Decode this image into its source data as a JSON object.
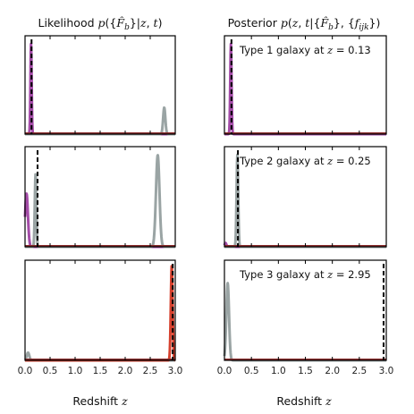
{
  "figure": {
    "left_title": "Likelihood p({F̂b}|z,t)",
    "right_title": "Posterior p(z,t|{F̂b},{fijk})",
    "xlabel": "Redshift z"
  },
  "colors": {
    "type1": "#a44ca8",
    "type2": "#9aa4a4",
    "type3": "#d6412e",
    "marker": "#000000",
    "axes": "#000000"
  },
  "chart_data": [
    {
      "type": "line",
      "column": "likelihood",
      "row": 1,
      "annotation": "Type 1 galaxy at z = 0.13",
      "annotation_shown": false,
      "true_z": 0.13,
      "xlim": [
        0.0,
        3.0
      ],
      "ylim": [
        0,
        1
      ],
      "series": [
        {
          "color_key": "type1",
          "peaks": [
            {
              "mu": 0.12,
              "sigma": 0.012,
              "amp": 0.95
            }
          ]
        },
        {
          "color_key": "type2",
          "peaks": [
            {
              "mu": 2.78,
              "sigma": 0.022,
              "amp": 0.28
            }
          ]
        },
        {
          "color_key": "type3",
          "peaks": []
        }
      ]
    },
    {
      "type": "line",
      "column": "likelihood",
      "row": 2,
      "annotation": "Type 2 galaxy at z = 0.25",
      "annotation_shown": false,
      "true_z": 0.25,
      "xlim": [
        0.0,
        3.0
      ],
      "ylim": [
        0,
        1
      ],
      "series": [
        {
          "color_key": "type1",
          "peaks": [
            {
              "mu": 0.03,
              "sigma": 0.028,
              "amp": 0.55
            }
          ]
        },
        {
          "color_key": "type2",
          "peaks": [
            {
              "mu": 0.21,
              "sigma": 0.015,
              "amp": 0.75
            },
            {
              "mu": 2.65,
              "sigma": 0.035,
              "amp": 0.95
            }
          ]
        },
        {
          "color_key": "type3",
          "peaks": []
        }
      ]
    },
    {
      "type": "line",
      "column": "likelihood",
      "row": 3,
      "annotation": "Type 3 galaxy at z = 2.95",
      "annotation_shown": false,
      "true_z": 2.95,
      "xlim": [
        0.0,
        3.0
      ],
      "ylim": [
        0,
        1
      ],
      "series": [
        {
          "color_key": "type1",
          "peaks": []
        },
        {
          "color_key": "type2",
          "peaks": [
            {
              "mu": 0.06,
              "sigma": 0.025,
              "amp": 0.08
            }
          ]
        },
        {
          "color_key": "type3",
          "peaks": [
            {
              "mu": 2.93,
              "sigma": 0.018,
              "amp": 0.98
            }
          ]
        }
      ]
    },
    {
      "type": "line",
      "column": "posterior",
      "row": 1,
      "annotation": "Type 1 galaxy at z = 0.13",
      "annotation_shown": true,
      "true_z": 0.13,
      "xlim": [
        0.0,
        3.0
      ],
      "ylim": [
        0,
        1
      ],
      "series": [
        {
          "color_key": "type1",
          "peaks": [
            {
              "mu": 0.12,
              "sigma": 0.012,
              "amp": 0.95
            }
          ]
        },
        {
          "color_key": "type2",
          "peaks": []
        },
        {
          "color_key": "type3",
          "peaks": []
        }
      ]
    },
    {
      "type": "line",
      "column": "posterior",
      "row": 2,
      "annotation": "Type 2 galaxy at z = 0.25",
      "annotation_shown": true,
      "true_z": 0.25,
      "xlim": [
        0.0,
        3.0
      ],
      "ylim": [
        0,
        1
      ],
      "series": [
        {
          "color_key": "type1",
          "peaks": [
            {
              "mu": 0.02,
              "sigma": 0.015,
              "amp": 0.04
            }
          ]
        },
        {
          "color_key": "type2",
          "peaks": [
            {
              "mu": 0.24,
              "sigma": 0.015,
              "amp": 0.95
            }
          ]
        },
        {
          "color_key": "type3",
          "peaks": []
        }
      ]
    },
    {
      "type": "line",
      "column": "posterior",
      "row": 3,
      "annotation": "Type 3 galaxy at z = 2.95",
      "annotation_shown": true,
      "true_z": 2.95,
      "xlim": [
        0.0,
        3.0
      ],
      "ylim": [
        0,
        1
      ],
      "series": [
        {
          "color_key": "type1",
          "peaks": []
        },
        {
          "color_key": "type2",
          "peaks": [
            {
              "mu": 0.06,
              "sigma": 0.025,
              "amp": 0.8
            }
          ]
        },
        {
          "color_key": "type3",
          "peaks": []
        }
      ]
    }
  ],
  "x_ticks": [
    "0.0",
    "0.5",
    "1.0",
    "1.5",
    "2.0",
    "2.5",
    "3.0"
  ],
  "x_tick_values": [
    0.0,
    0.5,
    1.0,
    1.5,
    2.0,
    2.5,
    3.0
  ]
}
